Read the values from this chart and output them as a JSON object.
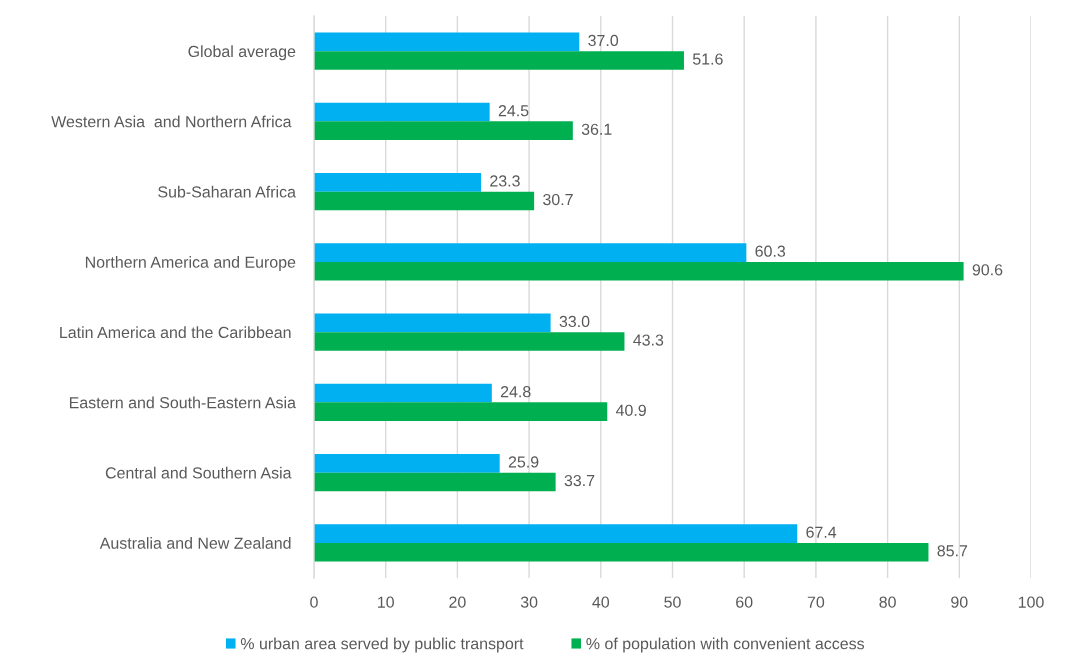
{
  "chart_data": {
    "type": "bar",
    "orientation": "horizontal",
    "categories": [
      "Global average",
      "Western Asia  and Northern Africa ",
      "Sub-Saharan Africa",
      "Northern America and Europe",
      "Latin America and the Caribbean ",
      "Eastern and South-Eastern Asia",
      "Central and Southern Asia ",
      "Australia and New Zealand "
    ],
    "series": [
      {
        "name": "% urban area served by public transport",
        "color": "#00b0f0",
        "values": [
          37.0,
          24.5,
          23.3,
          60.3,
          33.0,
          24.8,
          25.9,
          67.4
        ],
        "value_labels": [
          "37.0",
          "24.5",
          "23.3",
          "60.3",
          "33.0",
          "24.8",
          "25.9",
          "67.4"
        ]
      },
      {
        "name": "% of population with convenient access",
        "color": "#00b050",
        "values": [
          51.6,
          36.1,
          30.7,
          90.6,
          43.3,
          40.9,
          33.7,
          85.7
        ],
        "value_labels": [
          "51.6",
          "36.1",
          "30.7",
          "90.6",
          "43.3",
          "40.9",
          "33.7",
          "85.7"
        ]
      }
    ],
    "xlim": [
      0,
      100
    ],
    "xticks": [
      0,
      10,
      20,
      30,
      40,
      50,
      60,
      70,
      80,
      90,
      100
    ],
    "grid": "x",
    "legend": "bottom"
  }
}
